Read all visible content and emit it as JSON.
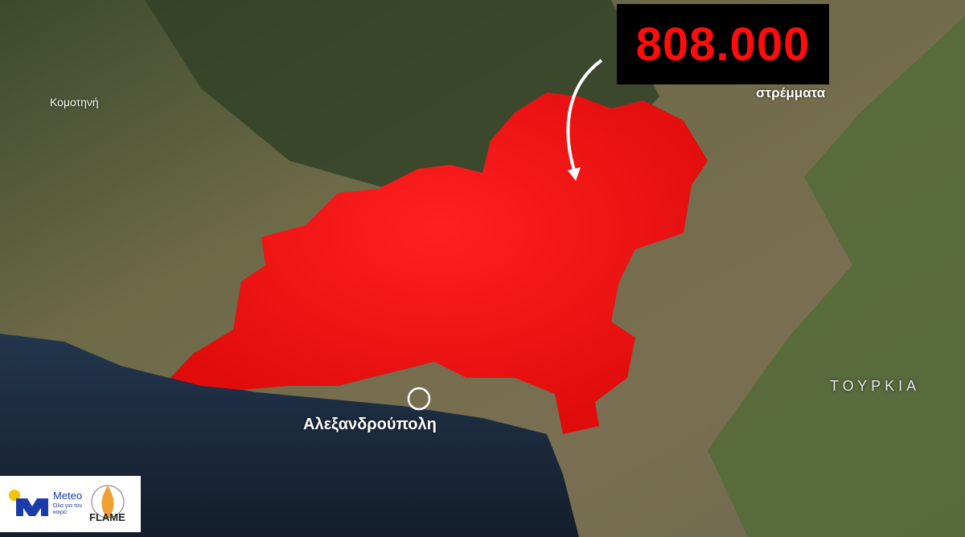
{
  "counter": {
    "value": "808.000",
    "unit": "στρέμματα"
  },
  "places": {
    "komotini": "Κομοτηνή",
    "alexandroupoli": "Αλεξανδρούπολη",
    "turkey": "ΤΟΥΡΚΙΑ"
  },
  "logos": {
    "meteo": "Meteo",
    "meteo_tagline": "Όλα για τον καιρό",
    "flame": "FLAME"
  },
  "colors": {
    "burn_area": "#ff1a1a",
    "counter_text": "#ff0d0d",
    "sea": "#1b2a3d",
    "meteo_blue": "#1b3ca8"
  }
}
